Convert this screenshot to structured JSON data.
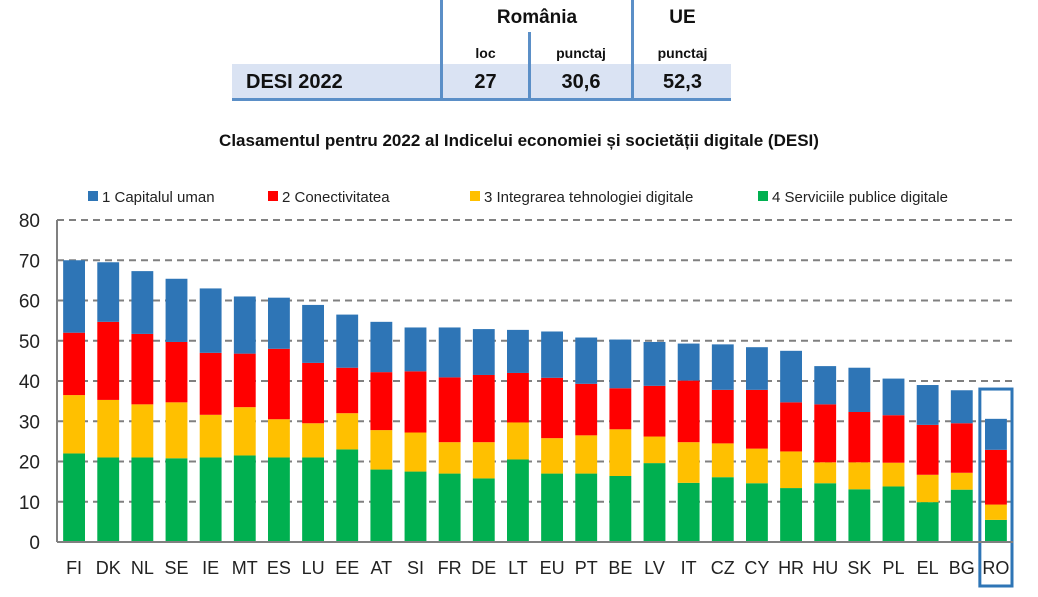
{
  "summary_table": {
    "group_headers": [
      "România",
      "UE"
    ],
    "sub_headers": [
      "loc",
      "punctaj",
      "punctaj"
    ],
    "row_label": "DESI 2022",
    "values": [
      "27",
      "30,6",
      "52,3"
    ]
  },
  "chart_data": {
    "type": "bar",
    "stacked": true,
    "title": "Clasamentul pentru 2022 al Indicelui economiei și societății digitale (DESI)",
    "xlabel": "",
    "ylabel": "",
    "ylim": [
      0,
      80
    ],
    "yticks": [
      0,
      10,
      20,
      30,
      40,
      50,
      60,
      70,
      80
    ],
    "grid": true,
    "legend_position": "top",
    "highlight_category": "RO",
    "categories": [
      "FI",
      "DK",
      "NL",
      "SE",
      "IE",
      "MT",
      "ES",
      "LU",
      "EE",
      "AT",
      "SI",
      "FR",
      "DE",
      "LT",
      "EU",
      "PT",
      "BE",
      "LV",
      "IT",
      "CZ",
      "CY",
      "HR",
      "HU",
      "SK",
      "PL",
      "EL",
      "BG",
      "RO"
    ],
    "series": [
      {
        "name": "4 Serviciile publice digitale",
        "color": "#00b050",
        "values": [
          22.0,
          21.0,
          21.0,
          20.8,
          21.0,
          21.5,
          21.0,
          21.0,
          23.0,
          18.0,
          17.5,
          17.0,
          15.8,
          20.5,
          17.0,
          17.0,
          16.4,
          19.6,
          14.7,
          16.1,
          14.6,
          13.4,
          14.6,
          13.1,
          13.8,
          9.9,
          13.0,
          5.5
        ]
      },
      {
        "name": "3 Integrarea tehnologiei digitale",
        "color": "#ffc000",
        "values": [
          14.5,
          14.3,
          13.2,
          13.9,
          10.6,
          12.0,
          9.5,
          8.5,
          9.0,
          9.8,
          9.7,
          7.8,
          9.0,
          9.2,
          8.8,
          9.5,
          11.6,
          6.6,
          10.1,
          8.4,
          8.6,
          9.1,
          5.2,
          6.7,
          5.9,
          6.8,
          4.2,
          3.8
        ]
      },
      {
        "name": "2 Conectivitatea",
        "color": "#ff0000",
        "values": [
          15.5,
          19.4,
          17.5,
          15.0,
          15.4,
          13.3,
          17.5,
          15.0,
          11.3,
          14.4,
          15.2,
          16.1,
          16.7,
          12.3,
          15.0,
          12.8,
          10.2,
          12.6,
          15.3,
          13.3,
          14.6,
          12.2,
          14.4,
          12.5,
          11.8,
          12.4,
          12.3,
          13.6
        ]
      },
      {
        "name": "1 Capitalul uman",
        "color": "#2e75b6",
        "values": [
          18.0,
          14.8,
          15.6,
          15.7,
          16.0,
          14.2,
          12.7,
          14.4,
          13.2,
          12.5,
          10.9,
          12.4,
          11.4,
          10.7,
          11.5,
          11.5,
          12.1,
          10.9,
          9.2,
          11.3,
          10.6,
          12.8,
          9.5,
          11.0,
          9.1,
          9.9,
          8.2,
          7.7
        ]
      }
    ],
    "legend": [
      "1 Capitalul uman",
      "2 Conectivitatea",
      "3 Integrarea tehnologiei digitale",
      "4 Serviciile publice digitale"
    ]
  }
}
